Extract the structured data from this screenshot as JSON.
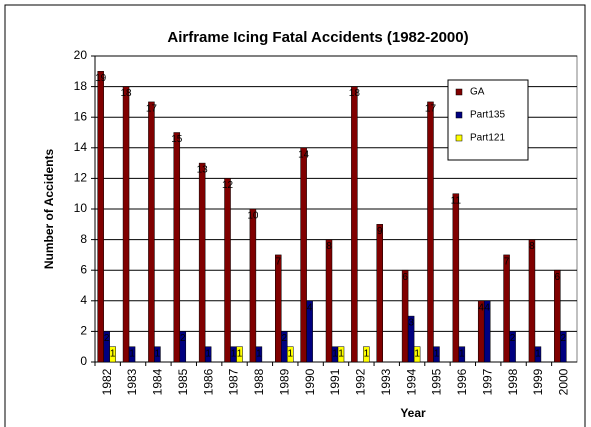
{
  "chart_data": {
    "type": "bar",
    "title": "Airframe Icing Fatal Accidents (1982-2000)",
    "x_label": "Year",
    "y_label": "Number of Accidents",
    "categories": [
      "1982",
      "1983",
      "1984",
      "1985",
      "1986",
      "1987",
      "1988",
      "1989",
      "1990",
      "1991",
      "1992",
      "1993",
      "1994",
      "1995",
      "1996",
      "1997",
      "1998",
      "1999",
      "2000"
    ],
    "series": [
      {
        "name": "GA",
        "color": "#800000",
        "values": [
          19,
          18,
          17,
          15,
          13,
          12,
          10,
          7,
          14,
          8,
          18,
          9,
          6,
          17,
          11,
          4,
          7,
          8,
          6
        ]
      },
      {
        "name": "Part135",
        "color": "#000080",
        "values": [
          2,
          1,
          1,
          2,
          1,
          1,
          1,
          2,
          4,
          1,
          0,
          0,
          3,
          1,
          1,
          4,
          2,
          1,
          2
        ]
      },
      {
        "name": "Part121",
        "color": "#ffff00",
        "values": [
          1,
          0,
          0,
          0,
          0,
          1,
          0,
          1,
          0,
          1,
          1,
          0,
          1,
          0,
          0,
          0,
          0,
          0,
          0
        ]
      }
    ],
    "ylim": [
      0,
      20
    ],
    "yticks": [
      0,
      2,
      4,
      6,
      8,
      10,
      12,
      14,
      16,
      18,
      20
    ],
    "grid": true,
    "legend": "upper right"
  }
}
